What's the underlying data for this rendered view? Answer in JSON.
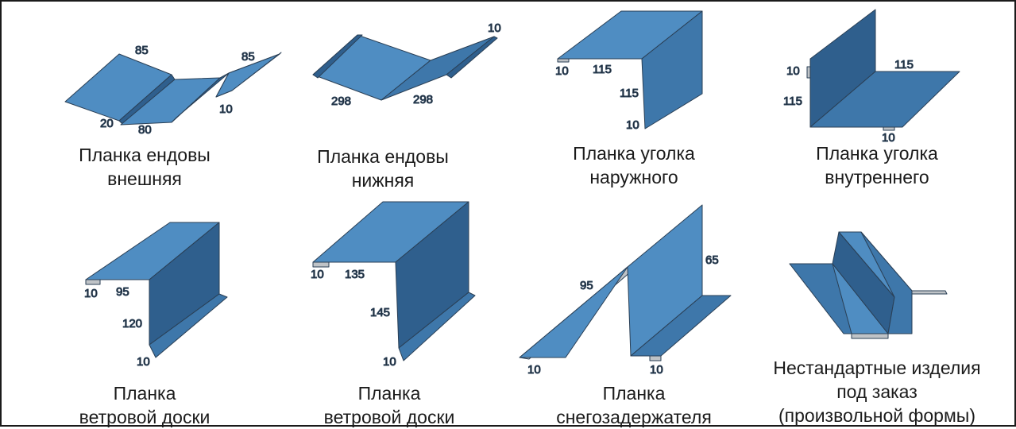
{
  "colors": {
    "light": "#4f8dc2",
    "mid": "#3e77aa",
    "dark": "#2f5f8d",
    "edge": "#2a3f55",
    "grey": "#bfc3c7"
  },
  "items": [
    {
      "id": "valley-outer",
      "caption": [
        "Планка ендовы",
        "внешняя"
      ],
      "dims": [
        "85",
        "85",
        "20",
        "80",
        "10"
      ]
    },
    {
      "id": "valley-lower",
      "caption": [
        "Планка ендовы",
        "нижняя"
      ],
      "dims": [
        "10",
        "298",
        "298"
      ]
    },
    {
      "id": "corner-outer",
      "caption": [
        "Планка уголка",
        "наружного"
      ],
      "dims": [
        "10",
        "115",
        "115",
        "10"
      ]
    },
    {
      "id": "corner-inner",
      "caption": [
        "Планка уголка",
        "внутреннего"
      ],
      "dims": [
        "10",
        "115",
        "115",
        "10"
      ]
    },
    {
      "id": "wind-board-1",
      "caption": [
        "Планка",
        "ветровой доски"
      ],
      "dims": [
        "10",
        "95",
        "120",
        "10"
      ]
    },
    {
      "id": "wind-board-2",
      "caption": [
        "Планка",
        "ветровой доски"
      ],
      "dims": [
        "10",
        "135",
        "145",
        "10"
      ]
    },
    {
      "id": "snow-guard",
      "caption": [
        "Планка",
        "снегозадержателя"
      ],
      "dims": [
        "95",
        "65",
        "10",
        "10"
      ]
    },
    {
      "id": "custom",
      "caption": [
        "Нестандартные изделия",
        "под заказ",
        "(произвольной формы)"
      ],
      "dims": []
    }
  ]
}
